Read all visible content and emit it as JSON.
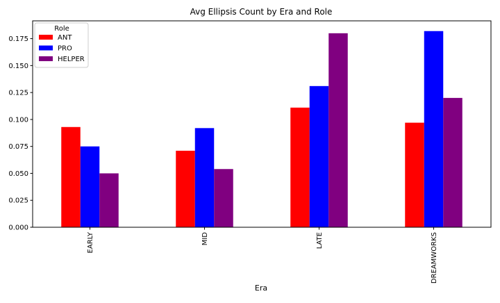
{
  "chart_data": {
    "type": "bar",
    "title": "Avg Ellipsis Count by Era and Role",
    "xlabel": "Era",
    "ylabel": "",
    "categories": [
      "EARLY",
      "MID",
      "LATE",
      "DREAMWORKS"
    ],
    "series": [
      {
        "name": "ANT",
        "color": "#ff0000",
        "values": [
          0.093,
          0.071,
          0.111,
          0.097
        ]
      },
      {
        "name": "PRO",
        "color": "#0000ff",
        "values": [
          0.075,
          0.092,
          0.131,
          0.182
        ]
      },
      {
        "name": "HELPER",
        "color": "#800080",
        "values": [
          0.05,
          0.054,
          0.18,
          0.12
        ]
      }
    ],
    "ylim": [
      0,
      0.1915
    ],
    "yticks": [
      "0.000",
      "0.025",
      "0.050",
      "0.075",
      "0.100",
      "0.125",
      "0.150",
      "0.175"
    ],
    "grid": false,
    "legend": {
      "title": "Role",
      "placement": "upper-left"
    }
  }
}
